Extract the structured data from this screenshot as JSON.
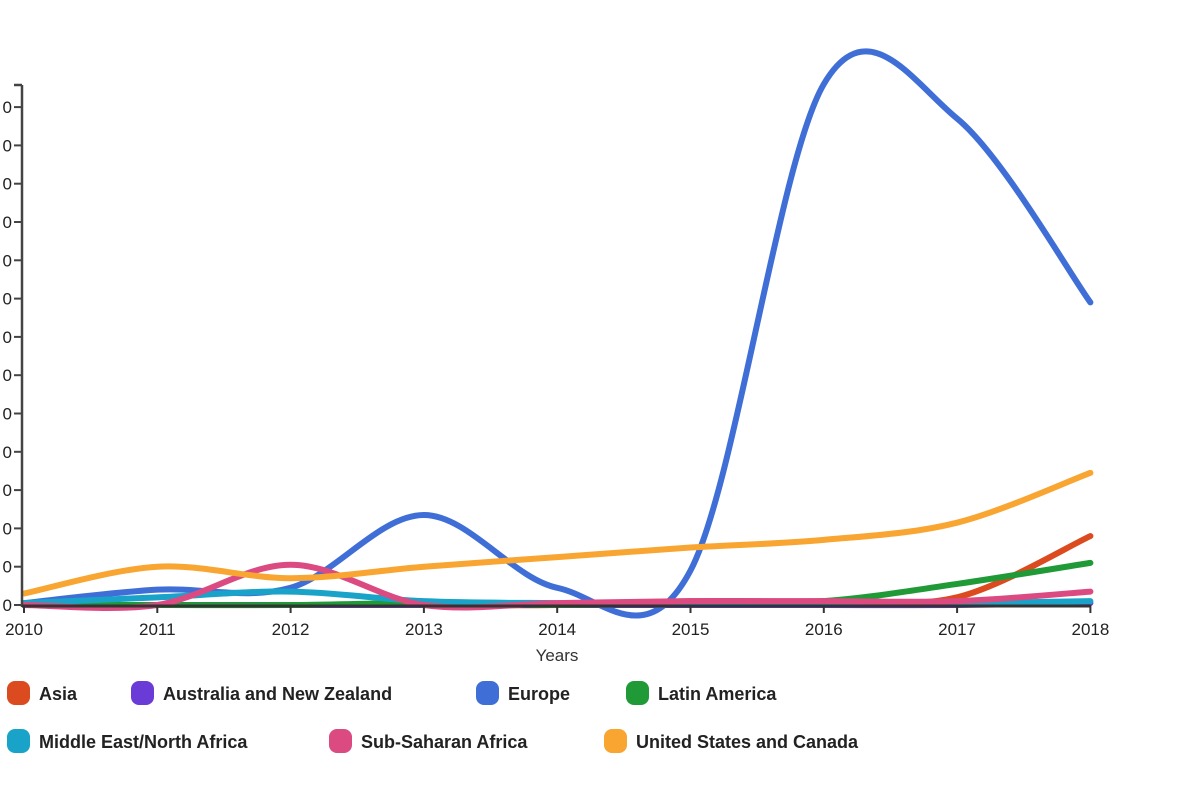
{
  "chart_data": {
    "type": "line",
    "title": "",
    "xlabel": "Years",
    "ylabel": "",
    "x": [
      2010,
      2011,
      2012,
      2013,
      2014,
      2015,
      2016,
      2017,
      2018
    ],
    "x_tick_labels": [
      "2010",
      "2011",
      "2012",
      "2013",
      "2014",
      "2015",
      "2016",
      "2017",
      "2018"
    ],
    "y_tick_labels": [
      "0",
      "0",
      "0",
      "0",
      "0",
      "0",
      "0",
      "0",
      "0",
      "0",
      "0",
      "0",
      "0",
      "0"
    ],
    "y_units": "tick steps (y tick labels clipped; only trailing 0 visible)",
    "ylim": [
      0,
      13.6
    ],
    "grid": false,
    "legend_placement": "bottom",
    "series": [
      {
        "name": "Asia",
        "color": "#dc4a1f",
        "values": [
          0,
          0,
          0,
          0,
          0,
          0.1,
          0.1,
          0.2,
          1.8
        ]
      },
      {
        "name": "Australia and New Zealand",
        "color": "#6a3bd6",
        "values": [
          0,
          0,
          0,
          0,
          0,
          0,
          0,
          0,
          0.05
        ]
      },
      {
        "name": "Europe",
        "color": "#3f6fd6",
        "values": [
          0.05,
          0.4,
          0.45,
          2.35,
          0.45,
          0.9,
          13.6,
          12.7,
          7.9
        ]
      },
      {
        "name": "Latin America",
        "color": "#1f9a36",
        "values": [
          0,
          0,
          0,
          0.05,
          0,
          0.05,
          0.1,
          0.55,
          1.1
        ]
      },
      {
        "name": "Middle East/North Africa",
        "color": "#19a3c9",
        "values": [
          0.05,
          0.2,
          0.35,
          0.1,
          0.05,
          0.05,
          0.05,
          0.05,
          0.1
        ]
      },
      {
        "name": "Sub-Saharan Africa",
        "color": "#dc4a82",
        "values": [
          0,
          0,
          1.05,
          0,
          0.05,
          0.1,
          0.1,
          0.1,
          0.35
        ]
      },
      {
        "name": "United States and Canada",
        "color": "#f8a532",
        "values": [
          0.3,
          1.0,
          0.7,
          1.0,
          1.25,
          1.5,
          1.7,
          2.15,
          3.45
        ]
      }
    ]
  }
}
